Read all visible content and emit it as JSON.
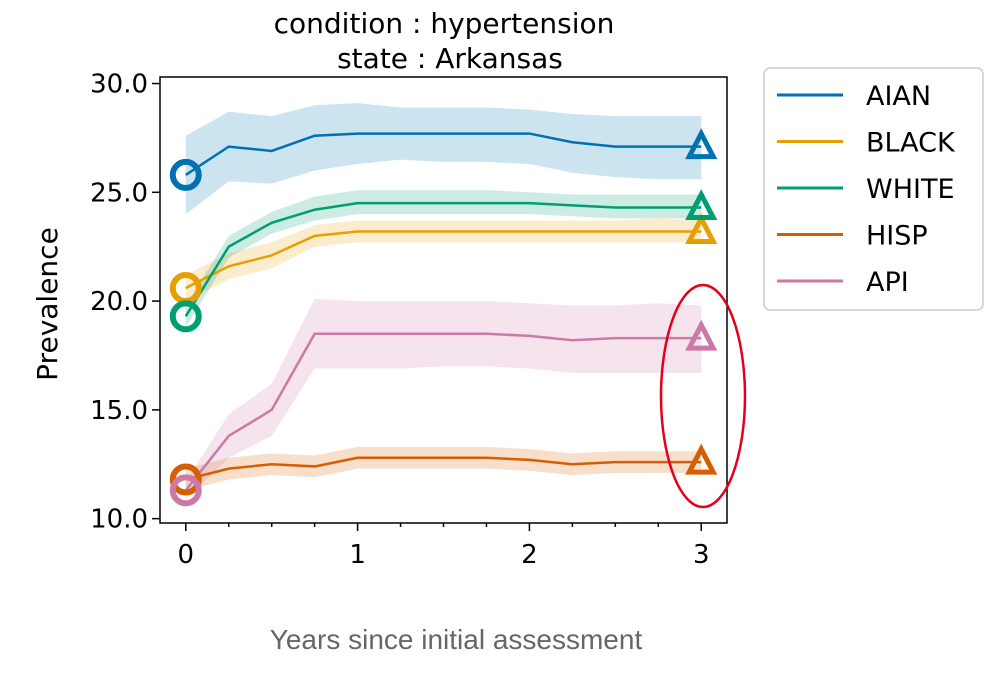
{
  "chart_data": {
    "type": "line",
    "title": [
      "condition : hypertension",
      "state : Arkansas"
    ],
    "xlabel": "Years since initial assessment",
    "ylabel": "Prevalence",
    "xlim": [
      -0.15,
      3.15
    ],
    "ylim": [
      9.8,
      30.3
    ],
    "xticks": [
      0,
      1,
      2,
      3
    ],
    "xtick_labels": [
      "0",
      "1",
      "2",
      "3"
    ],
    "yticks": [
      10,
      15,
      20,
      25,
      30
    ],
    "ytick_labels": [
      "10.0",
      "15.0",
      "20.0",
      "25.0",
      "30.0"
    ],
    "x": [
      0,
      0.25,
      0.5,
      0.75,
      1,
      1.25,
      1.5,
      1.75,
      2,
      2.25,
      2.5,
      2.75,
      3
    ],
    "legend_position": "outside-right",
    "series": [
      {
        "name": "AIAN",
        "color": "#0072B2",
        "values": [
          25.8,
          27.1,
          26.9,
          27.6,
          27.7,
          27.7,
          27.7,
          27.7,
          27.7,
          27.3,
          27.1,
          27.1,
          27.1
        ],
        "lower": [
          24.0,
          25.5,
          25.4,
          26.0,
          26.3,
          26.5,
          26.4,
          26.4,
          26.3,
          25.9,
          25.7,
          25.6,
          25.6
        ],
        "upper": [
          27.6,
          28.7,
          28.5,
          29.0,
          29.1,
          28.9,
          28.9,
          28.9,
          28.8,
          28.6,
          28.5,
          28.5,
          28.5
        ]
      },
      {
        "name": "BLACK",
        "color": "#E69F00",
        "values": [
          20.6,
          21.6,
          22.1,
          23.0,
          23.2,
          23.2,
          23.2,
          23.2,
          23.2,
          23.2,
          23.2,
          23.2,
          23.2
        ],
        "lower": [
          20.0,
          21.0,
          21.5,
          22.5,
          22.7,
          22.7,
          22.7,
          22.7,
          22.7,
          22.7,
          22.7,
          22.7,
          22.7
        ],
        "upper": [
          21.2,
          22.2,
          22.7,
          23.5,
          23.7,
          23.7,
          23.7,
          23.7,
          23.7,
          23.7,
          23.7,
          23.8,
          23.7
        ]
      },
      {
        "name": "WHITE",
        "color": "#009E73",
        "values": [
          19.3,
          22.5,
          23.6,
          24.2,
          24.5,
          24.5,
          24.5,
          24.5,
          24.5,
          24.4,
          24.3,
          24.3,
          24.3
        ],
        "lower": [
          18.8,
          22.0,
          23.1,
          23.7,
          24.0,
          24.0,
          24.0,
          24.0,
          24.0,
          23.9,
          23.8,
          23.8,
          23.8
        ],
        "upper": [
          19.8,
          23.0,
          24.1,
          24.8,
          25.1,
          25.1,
          25.1,
          25.1,
          25.0,
          24.9,
          24.9,
          24.9,
          24.9
        ]
      },
      {
        "name": "HISP",
        "color": "#D55E00",
        "values": [
          11.8,
          12.3,
          12.5,
          12.4,
          12.8,
          12.8,
          12.8,
          12.8,
          12.7,
          12.5,
          12.6,
          12.6,
          12.6
        ],
        "lower": [
          11.3,
          11.8,
          12.0,
          11.9,
          12.3,
          12.3,
          12.3,
          12.3,
          12.2,
          12.0,
          12.1,
          12.1,
          12.1
        ],
        "upper": [
          12.3,
          12.8,
          13.0,
          12.9,
          13.3,
          13.3,
          13.3,
          13.3,
          13.2,
          13.0,
          13.1,
          13.1,
          13.1
        ]
      },
      {
        "name": "API",
        "color": "#CC79A7",
        "values": [
          11.3,
          13.8,
          15.0,
          18.5,
          18.5,
          18.5,
          18.5,
          18.5,
          18.4,
          18.2,
          18.3,
          18.3,
          18.3
        ],
        "lower": [
          10.9,
          12.8,
          13.8,
          16.9,
          16.9,
          16.9,
          17.0,
          17.0,
          16.9,
          16.7,
          16.7,
          16.7,
          16.7
        ],
        "upper": [
          11.7,
          14.8,
          16.2,
          20.1,
          20.0,
          20.0,
          20.0,
          20.0,
          19.9,
          19.8,
          19.8,
          19.9,
          19.8
        ]
      }
    ]
  }
}
